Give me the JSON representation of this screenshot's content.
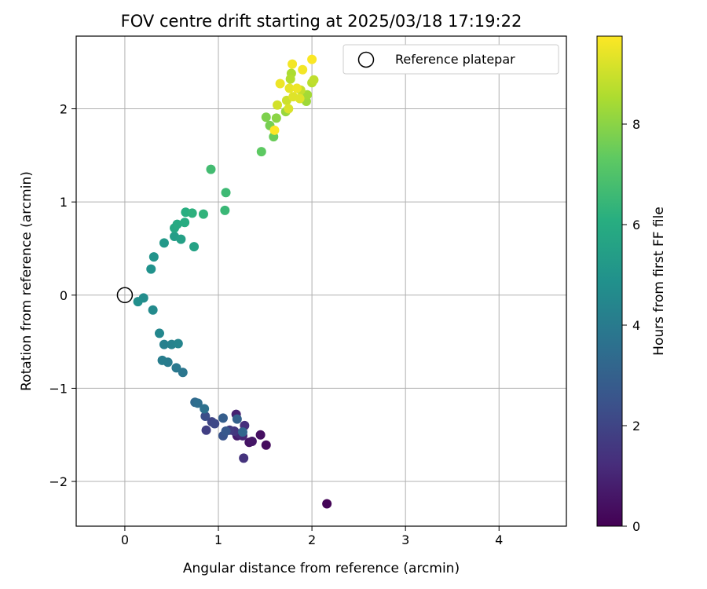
{
  "chart_data": {
    "type": "scatter",
    "title": "FOV centre drift starting at 2025/03/18 17:19:22",
    "xlabel": "Angular distance from reference (arcmin)",
    "ylabel": "Rotation from reference (arcmin)",
    "xlim": [
      -0.52,
      4.72
    ],
    "ylim": [
      -2.48,
      2.78
    ],
    "xticks": [
      0,
      1,
      2,
      3,
      4
    ],
    "xtick_labels": [
      "0",
      "1",
      "2",
      "3",
      "4"
    ],
    "yticks": [
      -2,
      -1,
      0,
      1,
      2
    ],
    "ytick_labels": [
      "−2",
      "−1",
      "0",
      "1",
      "2"
    ],
    "grid": true,
    "legend": {
      "placement": "top-right",
      "entries": [
        "Reference platepar"
      ]
    },
    "reference_point": {
      "x": 0,
      "y": 0
    },
    "colorbar": {
      "label": "Hours from first FF file",
      "colormap": "viridis",
      "range": [
        0,
        9.75
      ],
      "ticks": [
        0,
        2,
        4,
        6,
        8
      ],
      "tick_labels": [
        "0",
        "2",
        "4",
        "6",
        "8"
      ]
    },
    "points": [
      {
        "x": 2.16,
        "y": -2.24,
        "c": 0.1
      },
      {
        "x": 1.51,
        "y": -1.61,
        "c": 0.3
      },
      {
        "x": 1.45,
        "y": -1.5,
        "c": 0.4
      },
      {
        "x": 1.33,
        "y": -1.58,
        "c": 0.5
      },
      {
        "x": 1.36,
        "y": -1.57,
        "c": 0.6
      },
      {
        "x": 1.2,
        "y": -1.51,
        "c": 0.7
      },
      {
        "x": 1.19,
        "y": -1.28,
        "c": 0.9
      },
      {
        "x": 1.26,
        "y": -1.51,
        "c": 1.0
      },
      {
        "x": 1.22,
        "y": -1.49,
        "c": 1.1
      },
      {
        "x": 1.28,
        "y": -1.4,
        "c": 1.3
      },
      {
        "x": 1.27,
        "y": -1.75,
        "c": 1.4
      },
      {
        "x": 1.17,
        "y": -1.46,
        "c": 1.5
      },
      {
        "x": 1.12,
        "y": -1.45,
        "c": 1.7
      },
      {
        "x": 0.87,
        "y": -1.45,
        "c": 1.8
      },
      {
        "x": 0.93,
        "y": -1.36,
        "c": 2.0
      },
      {
        "x": 0.96,
        "y": -1.38,
        "c": 2.1
      },
      {
        "x": 0.86,
        "y": -1.3,
        "c": 2.3
      },
      {
        "x": 1.05,
        "y": -1.51,
        "c": 2.5
      },
      {
        "x": 1.08,
        "y": -1.46,
        "c": 2.7
      },
      {
        "x": 1.05,
        "y": -1.32,
        "c": 2.9
      },
      {
        "x": 1.2,
        "y": -1.33,
        "c": 3.0
      },
      {
        "x": 1.26,
        "y": -1.47,
        "c": 3.2
      },
      {
        "x": 0.75,
        "y": -1.15,
        "c": 3.3
      },
      {
        "x": 0.78,
        "y": -1.16,
        "c": 3.5
      },
      {
        "x": 0.85,
        "y": -1.22,
        "c": 3.6
      },
      {
        "x": 0.62,
        "y": -0.83,
        "c": 3.8
      },
      {
        "x": 0.55,
        "y": -0.78,
        "c": 3.9
      },
      {
        "x": 0.46,
        "y": -0.72,
        "c": 4.0
      },
      {
        "x": 0.4,
        "y": -0.7,
        "c": 4.1
      },
      {
        "x": 0.42,
        "y": -0.53,
        "c": 4.2
      },
      {
        "x": 0.5,
        "y": -0.53,
        "c": 4.3
      },
      {
        "x": 0.57,
        "y": -0.52,
        "c": 4.4
      },
      {
        "x": 0.37,
        "y": -0.41,
        "c": 4.5
      },
      {
        "x": 0.3,
        "y": -0.16,
        "c": 4.6
      },
      {
        "x": 0.2,
        "y": -0.03,
        "c": 4.7
      },
      {
        "x": 0.14,
        "y": -0.07,
        "c": 4.8
      },
      {
        "x": 0.28,
        "y": 0.28,
        "c": 4.9
      },
      {
        "x": 0.31,
        "y": 0.41,
        "c": 5.0
      },
      {
        "x": 0.42,
        "y": 0.56,
        "c": 5.2
      },
      {
        "x": 0.53,
        "y": 0.63,
        "c": 5.4
      },
      {
        "x": 0.6,
        "y": 0.6,
        "c": 5.5
      },
      {
        "x": 0.74,
        "y": 0.52,
        "c": 5.6
      },
      {
        "x": 0.53,
        "y": 0.72,
        "c": 5.8
      },
      {
        "x": 0.56,
        "y": 0.76,
        "c": 5.9
      },
      {
        "x": 0.64,
        "y": 0.78,
        "c": 6.0
      },
      {
        "x": 0.65,
        "y": 0.89,
        "c": 6.1
      },
      {
        "x": 0.72,
        "y": 0.88,
        "c": 6.2
      },
      {
        "x": 0.84,
        "y": 0.87,
        "c": 6.3
      },
      {
        "x": 1.07,
        "y": 0.91,
        "c": 6.5
      },
      {
        "x": 1.08,
        "y": 1.1,
        "c": 6.6
      },
      {
        "x": 0.92,
        "y": 1.35,
        "c": 6.7
      },
      {
        "x": 1.46,
        "y": 1.54,
        "c": 7.3
      },
      {
        "x": 1.59,
        "y": 1.7,
        "c": 7.5
      },
      {
        "x": 1.55,
        "y": 1.82,
        "c": 7.7
      },
      {
        "x": 1.51,
        "y": 1.91,
        "c": 7.8
      },
      {
        "x": 1.62,
        "y": 1.9,
        "c": 8.0
      },
      {
        "x": 1.72,
        "y": 1.97,
        "c": 8.2
      },
      {
        "x": 1.94,
        "y": 2.08,
        "c": 8.3
      },
      {
        "x": 1.95,
        "y": 2.15,
        "c": 8.4
      },
      {
        "x": 1.78,
        "y": 2.38,
        "c": 8.5
      },
      {
        "x": 1.77,
        "y": 2.32,
        "c": 8.6
      },
      {
        "x": 2.0,
        "y": 2.28,
        "c": 8.7
      },
      {
        "x": 2.02,
        "y": 2.31,
        "c": 8.8
      },
      {
        "x": 1.88,
        "y": 2.2,
        "c": 8.9
      },
      {
        "x": 1.73,
        "y": 2.09,
        "c": 9.0
      },
      {
        "x": 1.63,
        "y": 2.04,
        "c": 9.1
      },
      {
        "x": 1.75,
        "y": 2.0,
        "c": 9.2
      },
      {
        "x": 1.8,
        "y": 2.13,
        "c": 9.3
      },
      {
        "x": 1.87,
        "y": 2.11,
        "c": 9.3
      },
      {
        "x": 1.76,
        "y": 2.22,
        "c": 9.4
      },
      {
        "x": 1.84,
        "y": 2.22,
        "c": 9.5
      },
      {
        "x": 1.66,
        "y": 2.27,
        "c": 9.5
      },
      {
        "x": 1.9,
        "y": 2.42,
        "c": 9.6
      },
      {
        "x": 1.79,
        "y": 2.48,
        "c": 9.6
      },
      {
        "x": 2.0,
        "y": 2.53,
        "c": 9.7
      },
      {
        "x": 1.6,
        "y": 1.77,
        "c": 9.75
      }
    ]
  }
}
